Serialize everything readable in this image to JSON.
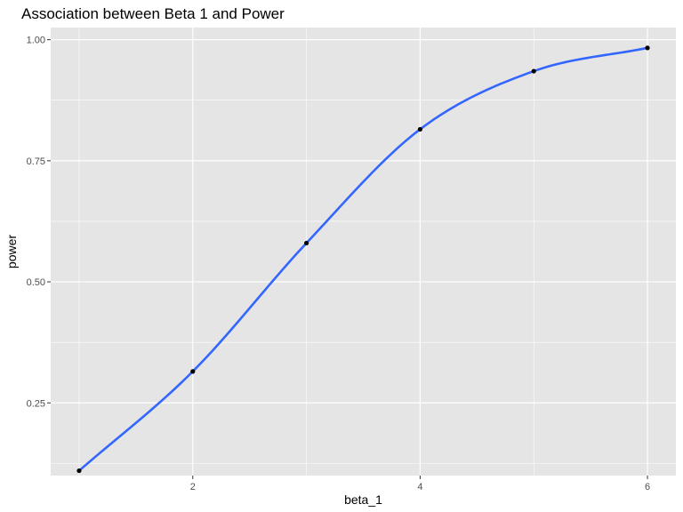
{
  "chart_data": {
    "type": "line",
    "title": "Association between Beta 1 and Power",
    "xlabel": "beta_1",
    "ylabel": "power",
    "xlim": [
      0.75,
      6.25
    ],
    "ylim": [
      0.1,
      1.025
    ],
    "x_ticks": [
      2,
      4,
      6
    ],
    "x_tick_labels": [
      "2",
      "4",
      "6"
    ],
    "x_minor_ticks": [
      1,
      3,
      5
    ],
    "y_ticks": [
      0.25,
      0.5,
      0.75,
      1.0
    ],
    "y_tick_labels": [
      "0.25",
      "0.50",
      "0.75",
      "1.00"
    ],
    "y_minor_ticks": [
      0.125,
      0.375,
      0.625,
      0.875
    ],
    "grid": true,
    "panel_background": "#e5e5e5",
    "grid_color": "#ffffff",
    "series": [
      {
        "x": [
          1,
          2,
          3,
          4,
          5,
          6
        ],
        "values": [
          0.11,
          0.315,
          0.58,
          0.815,
          0.935,
          0.983
        ],
        "point_color": "#000000",
        "smooth_line_color": "#3366ff"
      }
    ]
  }
}
